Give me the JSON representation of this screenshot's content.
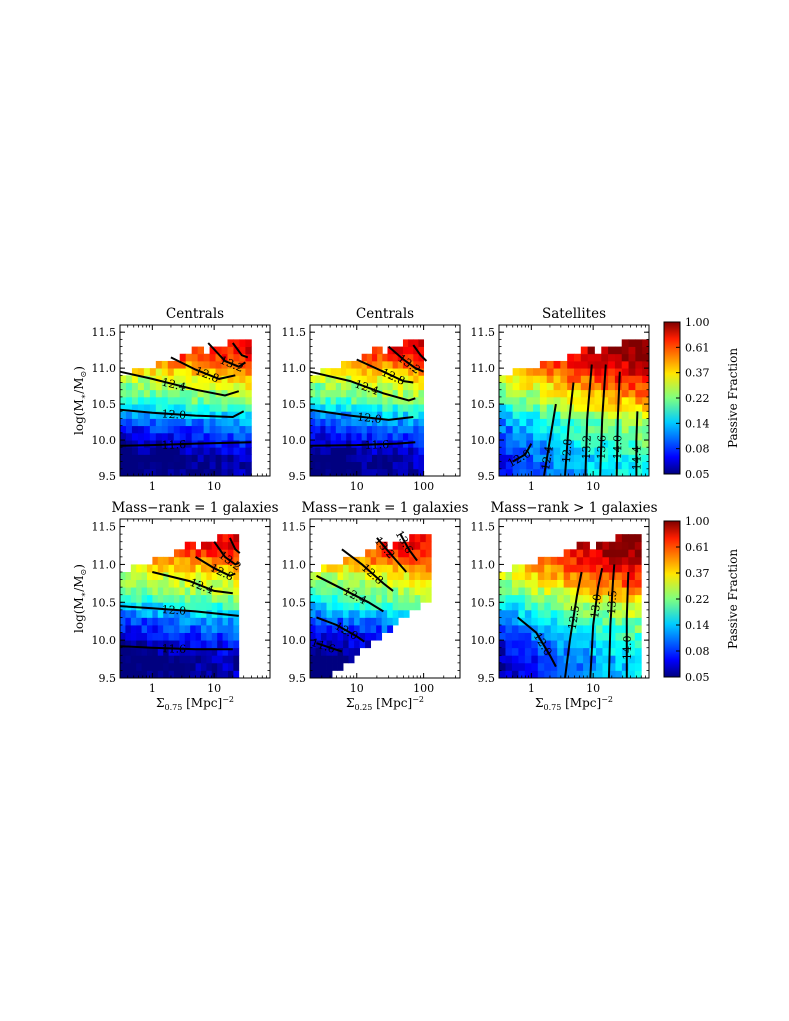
{
  "figure": {
    "colorbar_label": "Passive Fraction",
    "colorbar_ticks": [
      "0.05",
      "0.08",
      "0.14",
      "0.22",
      "0.37",
      "0.61",
      "1.00"
    ],
    "ylabel_html": "log(M<tspan font-size='8' dy='3'>∗</tspan><tspan dy='-3'>/M</tspan><tspan font-size='8' dy='3'>⊙</tspan><tspan dy='-3'>)</tspan>",
    "xlabel_075_html": "Σ<tspan font-size='8' dy='3'>0.75</tspan><tspan dy='-3'> [Mpc]</tspan><tspan font-size='8' dy='-5'>−2</tspan>",
    "xlabel_025_html": "Σ<tspan font-size='8' dy='3'>0.25</tspan><tspan dy='-3'> [Mpc]</tspan><tspan font-size='8' dy='-5'>−2</tspan>"
  },
  "chart_data": [
    {
      "type": "heatmap",
      "title": "Centrals",
      "xlabel": "",
      "ylabel": "log(M∗/M⊙)",
      "xscale": "log",
      "xlim": [
        0.3,
        80
      ],
      "ylim": [
        9.5,
        11.6
      ],
      "xticks": [
        "1",
        "10"
      ],
      "yticks": [
        "9.5",
        "10.0",
        "10.5",
        "11.0",
        "11.5"
      ],
      "x_extent": [
        0.3,
        40
      ],
      "quantity": "passive fraction",
      "passive_fraction_by_mass": [
        {
          "logM": 9.75,
          "fraction": 0.05
        },
        {
          "logM": 10.25,
          "fraction": 0.1
        },
        {
          "logM": 10.55,
          "fraction": 0.2
        },
        {
          "logM": 10.85,
          "fraction": 0.3
        },
        {
          "logM": 11.2,
          "fraction": 0.6
        }
      ],
      "contours": [
        {
          "label": "11.6",
          "points": [
            [
              0.3,
              9.92
            ],
            [
              1,
              9.93
            ],
            [
              5,
              9.95
            ],
            [
              40,
              9.97
            ]
          ]
        },
        {
          "label": "12.0",
          "points": [
            [
              0.3,
              10.42
            ],
            [
              1,
              10.38
            ],
            [
              5,
              10.34
            ],
            [
              20,
              10.32
            ],
            [
              30,
              10.4
            ]
          ]
        },
        {
          "label": "12.4",
          "points": [
            [
              0.3,
              10.95
            ],
            [
              1,
              10.85
            ],
            [
              5,
              10.7
            ],
            [
              15,
              10.62
            ],
            [
              25,
              10.68
            ]
          ]
        },
        {
          "label": "12.8",
          "points": [
            [
              2,
              11.15
            ],
            [
              5,
              10.98
            ],
            [
              12,
              10.85
            ],
            [
              22,
              10.9
            ]
          ]
        },
        {
          "label": "13.2",
          "points": [
            [
              8,
              11.35
            ],
            [
              15,
              11.1
            ],
            [
              25,
              11.02
            ],
            [
              32,
              11.08
            ]
          ]
        },
        {
          "label": "",
          "points": [
            [
              20,
              11.35
            ],
            [
              28,
              11.18
            ],
            [
              35,
              11.15
            ]
          ]
        }
      ]
    },
    {
      "type": "heatmap",
      "title": "Centrals",
      "xlabel": "",
      "ylabel": "",
      "xscale": "log",
      "xlim": [
        2,
        350
      ],
      "ylim": [
        9.5,
        11.6
      ],
      "xticks": [
        "10",
        "100"
      ],
      "yticks": [
        "9.5",
        "10.0",
        "10.5",
        "11.0",
        "11.5"
      ],
      "x_extent": [
        2,
        100
      ],
      "quantity": "passive fraction",
      "passive_fraction_by_mass": [
        {
          "logM": 9.75,
          "fraction": 0.05
        },
        {
          "logM": 10.25,
          "fraction": 0.1
        },
        {
          "logM": 10.55,
          "fraction": 0.2
        },
        {
          "logM": 10.85,
          "fraction": 0.3
        },
        {
          "logM": 11.2,
          "fraction": 0.6
        }
      ],
      "contours": [
        {
          "label": "11.6",
          "points": [
            [
              2,
              9.92
            ],
            [
              10,
              9.93
            ],
            [
              40,
              9.95
            ],
            [
              75,
              9.97
            ]
          ]
        },
        {
          "label": "12.0",
          "points": [
            [
              2,
              10.42
            ],
            [
              8,
              10.34
            ],
            [
              30,
              10.28
            ],
            [
              70,
              10.32
            ]
          ]
        },
        {
          "label": "12.4",
          "points": [
            [
              2,
              10.95
            ],
            [
              8,
              10.82
            ],
            [
              25,
              10.65
            ],
            [
              60,
              10.55
            ],
            [
              75,
              10.58
            ]
          ]
        },
        {
          "label": "12.8",
          "points": [
            [
              10,
              11.12
            ],
            [
              25,
              10.95
            ],
            [
              50,
              10.82
            ],
            [
              70,
              10.8
            ]
          ]
        },
        {
          "label": "13.2",
          "points": [
            [
              30,
              11.3
            ],
            [
              50,
              11.12
            ],
            [
              75,
              11.0
            ],
            [
              100,
              10.95
            ]
          ]
        },
        {
          "label": "",
          "points": [
            [
              70,
              11.32
            ],
            [
              90,
              11.18
            ],
            [
              110,
              11.1
            ]
          ]
        }
      ]
    },
    {
      "type": "heatmap",
      "title": "Satellites",
      "xlabel": "",
      "ylabel": "",
      "xscale": "log",
      "xlim": [
        0.3,
        80
      ],
      "ylim": [
        9.5,
        11.6
      ],
      "xticks": [
        "1",
        "10"
      ],
      "yticks": [
        "9.5",
        "10.0",
        "10.5",
        "11.0",
        "11.5"
      ],
      "x_extent": [
        0.3,
        80
      ],
      "quantity": "passive fraction",
      "passive_fraction_by_mass": [
        {
          "logM": 9.75,
          "fraction": 0.1
        },
        {
          "logM": 10.25,
          "fraction": 0.15
        },
        {
          "logM": 10.55,
          "fraction": 0.25
        },
        {
          "logM": 10.85,
          "fraction": 0.4
        },
        {
          "logM": 11.2,
          "fraction": 0.6
        }
      ],
      "contours": [
        {
          "label": "12.0",
          "points": [
            [
              0.5,
              9.7
            ],
            [
              0.8,
              9.8
            ],
            [
              1.0,
              9.95
            ]
          ]
        },
        {
          "label": "12.4",
          "points": [
            [
              1.6,
              9.5
            ],
            [
              2.0,
              10.0
            ],
            [
              2.5,
              10.5
            ]
          ]
        },
        {
          "label": "12.8",
          "points": [
            [
              3.5,
              9.5
            ],
            [
              4.0,
              10.2
            ],
            [
              4.8,
              10.8
            ]
          ]
        },
        {
          "label": "13.2",
          "points": [
            [
              7.5,
              9.5
            ],
            [
              8.0,
              10.3
            ],
            [
              9.5,
              11.05
            ]
          ]
        },
        {
          "label": "13.6",
          "points": [
            [
              13,
              9.5
            ],
            [
              14,
              10.3
            ],
            [
              16,
              11.05
            ]
          ]
        },
        {
          "label": "14.0",
          "points": [
            [
              24,
              9.5
            ],
            [
              25,
              10.3
            ],
            [
              27,
              10.95
            ]
          ]
        },
        {
          "label": "14.4",
          "points": [
            [
              50,
              9.5
            ],
            [
              50,
              10.0
            ],
            [
              52,
              10.4
            ]
          ]
        }
      ]
    },
    {
      "type": "heatmap",
      "title": "Mass−rank = 1 galaxies",
      "xlabel": "Σ0.75 [Mpc]−2",
      "ylabel": "log(M∗/M⊙)",
      "xscale": "log",
      "xlim": [
        0.3,
        80
      ],
      "ylim": [
        9.5,
        11.6
      ],
      "xticks": [
        "1",
        "10"
      ],
      "yticks": [
        "9.5",
        "10.0",
        "10.5",
        "11.0",
        "11.5"
      ],
      "x_extent": [
        0.3,
        25
      ],
      "quantity": "passive fraction",
      "passive_fraction_by_mass": [
        {
          "logM": 9.75,
          "fraction": 0.05
        },
        {
          "logM": 10.25,
          "fraction": 0.1
        },
        {
          "logM": 10.55,
          "fraction": 0.2
        },
        {
          "logM": 10.85,
          "fraction": 0.3
        },
        {
          "logM": 11.2,
          "fraction": 0.6
        }
      ],
      "contours": [
        {
          "label": "11.6",
          "points": [
            [
              0.3,
              9.92
            ],
            [
              1,
              9.9
            ],
            [
              5,
              9.88
            ],
            [
              20,
              9.88
            ]
          ]
        },
        {
          "label": "12.0",
          "points": [
            [
              0.3,
              10.45
            ],
            [
              1,
              10.42
            ],
            [
              5,
              10.38
            ],
            [
              20,
              10.33
            ],
            [
              25,
              10.32
            ]
          ]
        },
        {
          "label": "12.4",
          "points": [
            [
              1,
              10.9
            ],
            [
              4,
              10.78
            ],
            [
              10,
              10.65
            ],
            [
              20,
              10.62
            ]
          ]
        },
        {
          "label": "12.8",
          "points": [
            [
              5,
              11.1
            ],
            [
              10,
              10.95
            ],
            [
              18,
              10.85
            ],
            [
              22,
              10.88
            ]
          ]
        },
        {
          "label": "13.2",
          "points": [
            [
              10,
              11.3
            ],
            [
              15,
              11.1
            ],
            [
              22,
              11.0
            ],
            [
              25,
              11.02
            ]
          ]
        },
        {
          "label": "",
          "points": [
            [
              18,
              11.35
            ],
            [
              22,
              11.2
            ],
            [
              26,
              11.15
            ]
          ]
        }
      ]
    },
    {
      "type": "heatmap",
      "title": "Mass−rank = 1 galaxies",
      "xlabel": "Σ0.25 [Mpc]−2",
      "ylabel": "",
      "xscale": "log",
      "xlim": [
        2,
        350
      ],
      "ylim": [
        9.5,
        11.6
      ],
      "xticks": [
        "10",
        "100"
      ],
      "yticks": [
        "9.5",
        "10.0",
        "10.5",
        "11.0",
        "11.5"
      ],
      "x_extent": [
        2,
        130
      ],
      "quantity": "passive fraction",
      "passive_fraction_by_mass": [
        {
          "logM": 9.75,
          "fraction": 0.05
        },
        {
          "logM": 10.25,
          "fraction": 0.1
        },
        {
          "logM": 10.55,
          "fraction": 0.2
        },
        {
          "logM": 10.85,
          "fraction": 0.3
        },
        {
          "logM": 11.2,
          "fraction": 0.6
        }
      ],
      "contours": [
        {
          "label": "11.6",
          "points": [
            [
              2.5,
              9.96
            ],
            [
              4,
              9.9
            ],
            [
              6,
              9.85
            ]
          ]
        },
        {
          "label": "12.0",
          "points": [
            [
              2.5,
              10.3
            ],
            [
              5,
              10.2
            ],
            [
              10,
              10.05
            ],
            [
              13,
              9.98
            ]
          ]
        },
        {
          "label": "12.4",
          "points": [
            [
              2.5,
              10.85
            ],
            [
              6,
              10.68
            ],
            [
              15,
              10.5
            ],
            [
              25,
              10.38
            ]
          ]
        },
        {
          "label": "12.8",
          "points": [
            [
              6,
              11.2
            ],
            [
              12,
              11.0
            ],
            [
              25,
              10.75
            ],
            [
              35,
              10.65
            ]
          ]
        },
        {
          "label": "13.2",
          "points": [
            [
              20,
              11.35
            ],
            [
              35,
              11.1
            ],
            [
              55,
              10.9
            ]
          ]
        },
        {
          "label": "13.6",
          "points": [
            [
              45,
              11.4
            ],
            [
              60,
              11.2
            ],
            [
              80,
              11.05
            ]
          ]
        }
      ]
    },
    {
      "type": "heatmap",
      "title": "Mass−rank > 1 galaxies",
      "xlabel": "Σ0.75 [Mpc]−2",
      "ylabel": "",
      "xscale": "log",
      "xlim": [
        0.3,
        80
      ],
      "ylim": [
        9.5,
        11.6
      ],
      "xticks": [
        "1",
        "10"
      ],
      "yticks": [
        "9.5",
        "10.0",
        "10.5",
        "11.0",
        "11.5"
      ],
      "x_extent": [
        0.3,
        60
      ],
      "quantity": "passive fraction",
      "passive_fraction_by_mass": [
        {
          "logM": 9.75,
          "fraction": 0.08
        },
        {
          "logM": 10.25,
          "fraction": 0.13
        },
        {
          "logM": 10.55,
          "fraction": 0.22
        },
        {
          "logM": 10.85,
          "fraction": 0.38
        },
        {
          "logM": 11.2,
          "fraction": 0.6
        }
      ],
      "contours": [
        {
          "label": "12.0",
          "points": [
            [
              0.6,
              10.3
            ],
            [
              1.2,
              10.1
            ],
            [
              2.0,
              9.8
            ],
            [
              2.5,
              9.65
            ]
          ]
        },
        {
          "label": "12.5",
          "points": [
            [
              3.5,
              9.5
            ],
            [
              4.2,
              10.0
            ],
            [
              5.5,
              10.6
            ],
            [
              6.5,
              10.9
            ]
          ]
        },
        {
          "label": "13.0",
          "points": [
            [
              9,
              9.5
            ],
            [
              10,
              10.2
            ],
            [
              12,
              10.7
            ],
            [
              14,
              10.95
            ]
          ]
        },
        {
          "label": "13.5",
          "points": [
            [
              18,
              9.5
            ],
            [
              19,
              10.2
            ],
            [
              21,
              10.8
            ],
            [
              22,
              11.0
            ]
          ]
        },
        {
          "label": "14.0",
          "points": [
            [
              35,
              9.5
            ],
            [
              35,
              10.3
            ],
            [
              37,
              10.9
            ]
          ]
        }
      ]
    }
  ]
}
